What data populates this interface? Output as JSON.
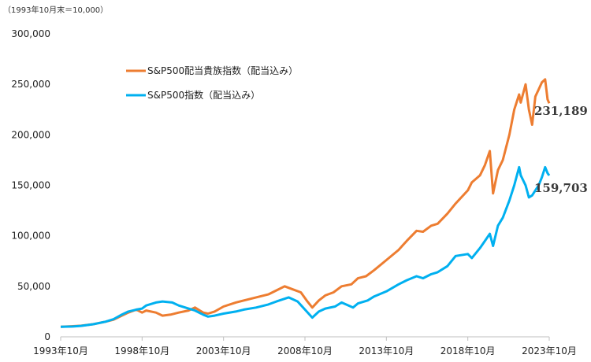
{
  "chart_data": {
    "type": "line",
    "note": "（1993年10月末＝10,000）",
    "title": "",
    "xlabel": "",
    "ylabel": "",
    "ylim": [
      0,
      300000
    ],
    "yticks": [
      0,
      50000,
      100000,
      150000,
      200000,
      250000,
      300000
    ],
    "ytick_labels": [
      "0",
      "50,000",
      "100,000",
      "150,000",
      "200,000",
      "250,000",
      "300,000"
    ],
    "xlim": [
      1993.75,
      2023.75
    ],
    "xticks": [
      1993.75,
      1998.75,
      2003.75,
      2008.75,
      2013.75,
      2018.75,
      2023.75
    ],
    "xtick_labels": [
      "1993年10月",
      "1998年10月",
      "2003年10月",
      "2008年10月",
      "2013年10月",
      "2018年10月",
      "2023年10月"
    ],
    "grid": false,
    "legend_position": "top-left",
    "series": [
      {
        "name": "S&P500配当貴族指数（配当込み）",
        "color": "#ED7D31",
        "end_label": "231,189",
        "points": [
          [
            1993.75,
            10000
          ],
          [
            1994.5,
            10500
          ],
          [
            1995.0,
            11000
          ],
          [
            1995.75,
            12500
          ],
          [
            1996.5,
            15000
          ],
          [
            1997.0,
            17000
          ],
          [
            1997.5,
            21000
          ],
          [
            1997.9,
            24000
          ],
          [
            1998.4,
            27000
          ],
          [
            1998.75,
            24000
          ],
          [
            1999.0,
            26000
          ],
          [
            1999.6,
            24000
          ],
          [
            2000.0,
            21000
          ],
          [
            2000.5,
            22000
          ],
          [
            2001.0,
            24000
          ],
          [
            2001.6,
            26000
          ],
          [
            2002.0,
            29000
          ],
          [
            2002.5,
            24000
          ],
          [
            2002.8,
            23000
          ],
          [
            2003.2,
            25000
          ],
          [
            2003.75,
            30000
          ],
          [
            2004.5,
            34000
          ],
          [
            2005.0,
            36000
          ],
          [
            2005.75,
            39000
          ],
          [
            2006.5,
            42000
          ],
          [
            2007.0,
            46000
          ],
          [
            2007.5,
            50000
          ],
          [
            2008.0,
            47000
          ],
          [
            2008.5,
            44000
          ],
          [
            2008.9,
            35000
          ],
          [
            2009.2,
            29000
          ],
          [
            2009.6,
            36000
          ],
          [
            2010.0,
            41000
          ],
          [
            2010.5,
            44000
          ],
          [
            2011.0,
            50000
          ],
          [
            2011.6,
            52000
          ],
          [
            2012.0,
            58000
          ],
          [
            2012.5,
            60000
          ],
          [
            2013.0,
            66000
          ],
          [
            2013.75,
            76000
          ],
          [
            2014.5,
            86000
          ],
          [
            2015.0,
            95000
          ],
          [
            2015.6,
            105000
          ],
          [
            2016.0,
            104000
          ],
          [
            2016.5,
            110000
          ],
          [
            2016.9,
            112000
          ],
          [
            2017.5,
            122000
          ],
          [
            2018.0,
            132000
          ],
          [
            2018.75,
            145000
          ],
          [
            2019.0,
            153000
          ],
          [
            2019.5,
            160000
          ],
          [
            2019.8,
            170000
          ],
          [
            2020.1,
            184000
          ],
          [
            2020.3,
            142000
          ],
          [
            2020.6,
            165000
          ],
          [
            2020.9,
            175000
          ],
          [
            2021.3,
            200000
          ],
          [
            2021.6,
            225000
          ],
          [
            2021.9,
            240000
          ],
          [
            2022.0,
            232000
          ],
          [
            2022.3,
            250000
          ],
          [
            2022.5,
            225000
          ],
          [
            2022.7,
            210000
          ],
          [
            2022.9,
            238000
          ],
          [
            2023.1,
            245000
          ],
          [
            2023.3,
            252000
          ],
          [
            2023.5,
            255000
          ],
          [
            2023.65,
            235000
          ],
          [
            2023.75,
            231189
          ]
        ]
      },
      {
        "name": "S&P500指数（配当込み）",
        "color": "#00B0F0",
        "end_label": "159,703",
        "points": [
          [
            1993.75,
            10000
          ],
          [
            1994.5,
            10200
          ],
          [
            1995.0,
            10800
          ],
          [
            1995.75,
            12500
          ],
          [
            1996.5,
            15000
          ],
          [
            1997.0,
            17500
          ],
          [
            1997.5,
            22000
          ],
          [
            1997.9,
            25000
          ],
          [
            1998.4,
            27000
          ],
          [
            1998.75,
            28000
          ],
          [
            1999.0,
            31000
          ],
          [
            1999.6,
            34000
          ],
          [
            2000.0,
            35000
          ],
          [
            2000.6,
            34000
          ],
          [
            2001.0,
            31000
          ],
          [
            2001.6,
            28000
          ],
          [
            2002.0,
            26000
          ],
          [
            2002.5,
            22000
          ],
          [
            2002.8,
            20000
          ],
          [
            2003.2,
            21000
          ],
          [
            2003.75,
            23000
          ],
          [
            2004.5,
            25000
          ],
          [
            2005.0,
            27000
          ],
          [
            2005.75,
            29000
          ],
          [
            2006.5,
            32000
          ],
          [
            2007.0,
            35000
          ],
          [
            2007.75,
            39000
          ],
          [
            2008.3,
            35000
          ],
          [
            2008.75,
            27000
          ],
          [
            2009.2,
            19000
          ],
          [
            2009.6,
            25000
          ],
          [
            2010.0,
            28000
          ],
          [
            2010.6,
            30000
          ],
          [
            2011.0,
            34000
          ],
          [
            2011.7,
            29000
          ],
          [
            2012.0,
            33000
          ],
          [
            2012.6,
            36000
          ],
          [
            2013.0,
            40000
          ],
          [
            2013.75,
            45000
          ],
          [
            2014.5,
            52000
          ],
          [
            2015.0,
            56000
          ],
          [
            2015.6,
            60000
          ],
          [
            2016.0,
            58000
          ],
          [
            2016.5,
            62000
          ],
          [
            2016.9,
            64000
          ],
          [
            2017.5,
            70000
          ],
          [
            2018.0,
            80000
          ],
          [
            2018.75,
            82000
          ],
          [
            2019.0,
            78000
          ],
          [
            2019.5,
            88000
          ],
          [
            2019.8,
            95000
          ],
          [
            2020.1,
            102000
          ],
          [
            2020.3,
            90000
          ],
          [
            2020.6,
            110000
          ],
          [
            2020.9,
            118000
          ],
          [
            2021.3,
            135000
          ],
          [
            2021.6,
            150000
          ],
          [
            2021.9,
            168000
          ],
          [
            2022.0,
            160000
          ],
          [
            2022.3,
            150000
          ],
          [
            2022.5,
            138000
          ],
          [
            2022.7,
            140000
          ],
          [
            2022.9,
            145000
          ],
          [
            2023.1,
            150000
          ],
          [
            2023.3,
            158000
          ],
          [
            2023.5,
            168000
          ],
          [
            2023.65,
            162000
          ],
          [
            2023.75,
            159703
          ]
        ]
      }
    ]
  }
}
